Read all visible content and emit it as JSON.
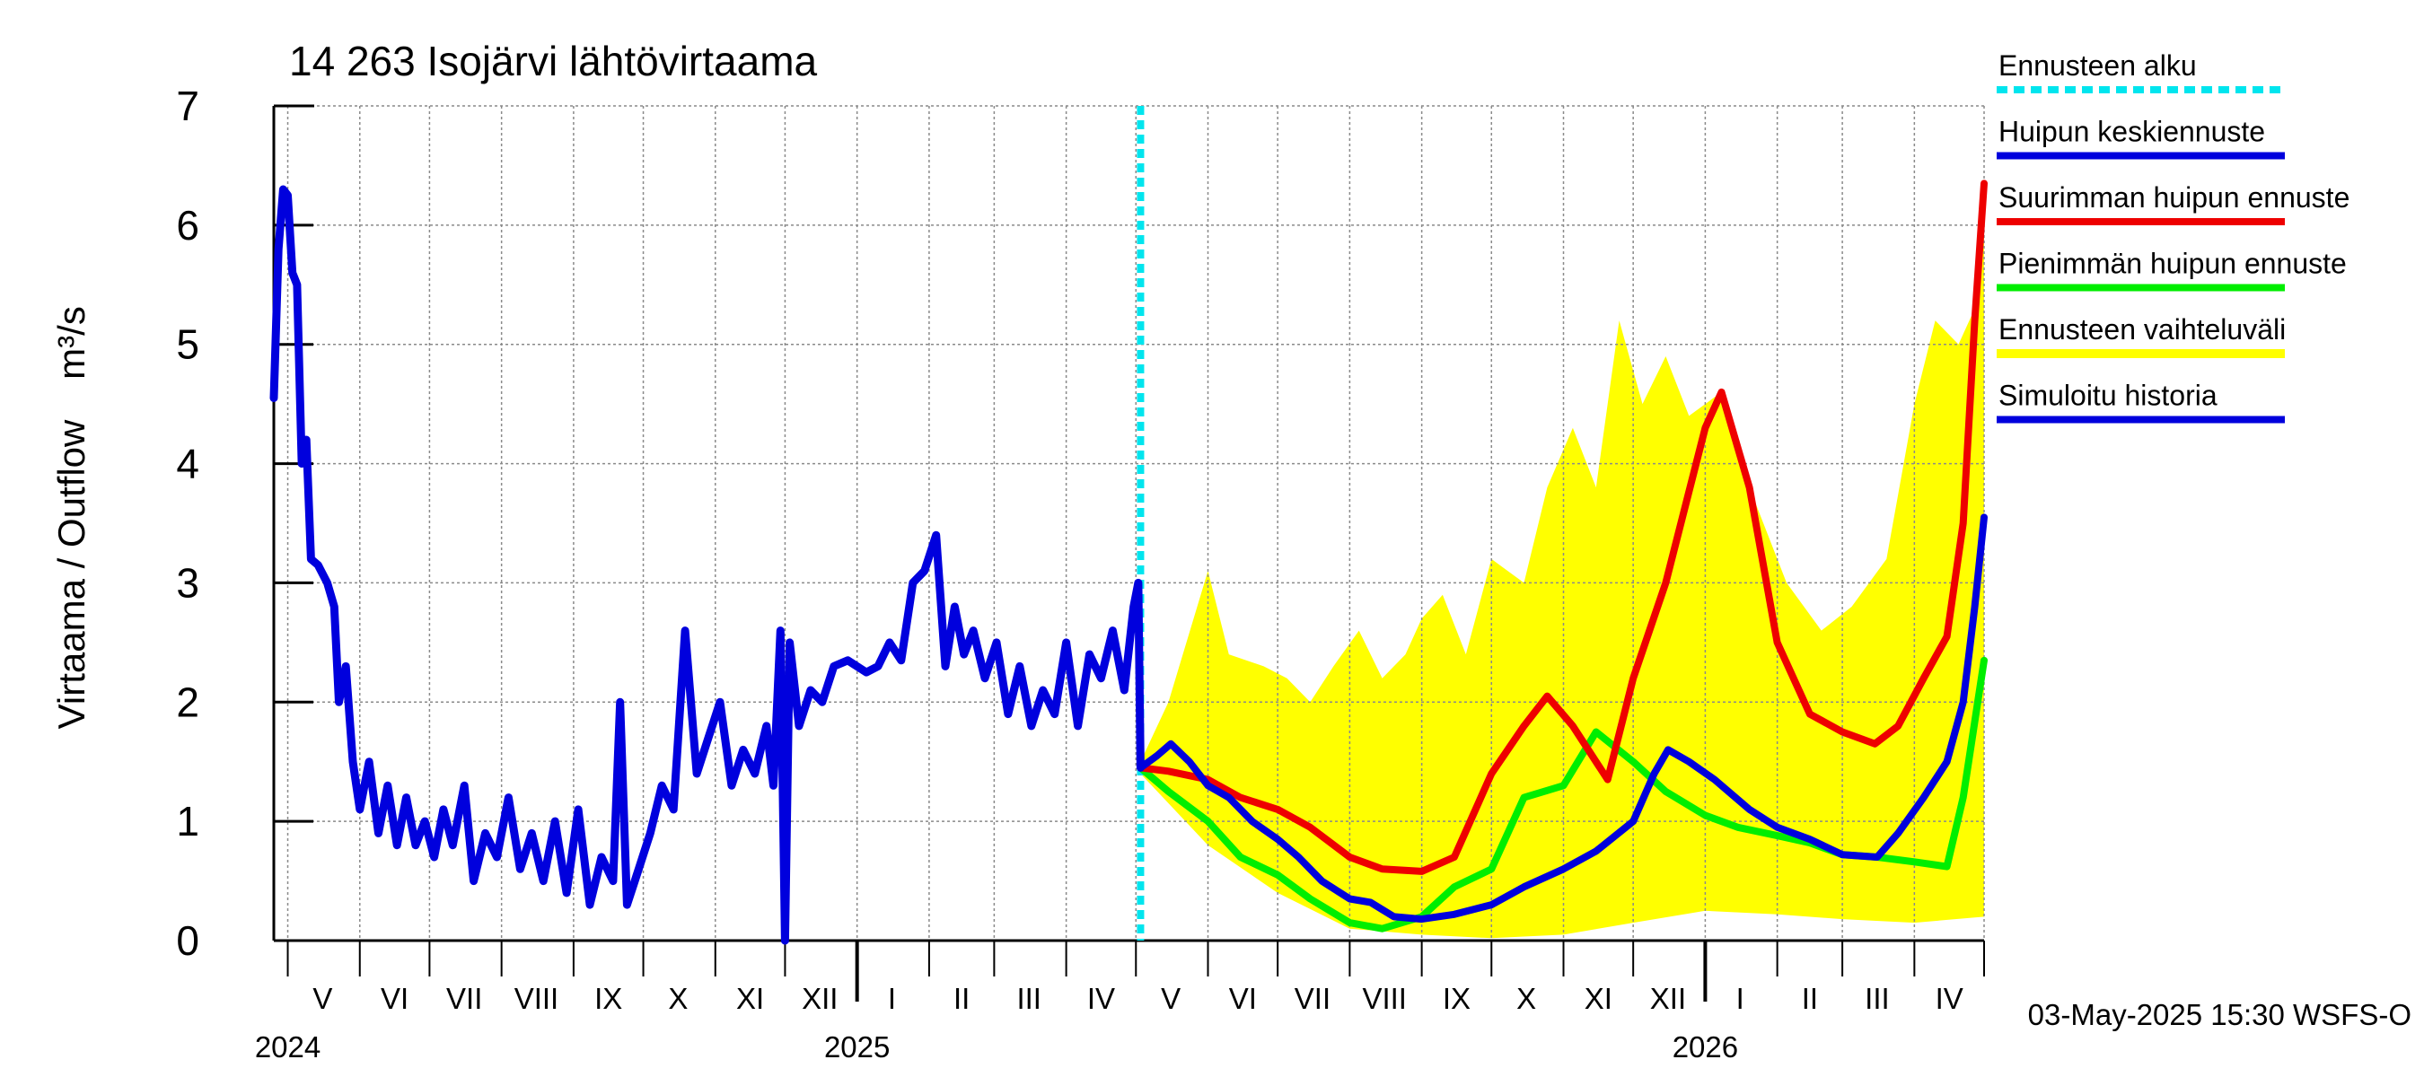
{
  "chart_data": {
    "type": "line",
    "title": "14 263 Isojärvi lähtövirtaama",
    "ylabel": "Virtaama / Outflow",
    "yunit": "m³/s",
    "ylim": [
      0,
      7
    ],
    "yticks": [
      "0",
      "1",
      "2",
      "3",
      "4",
      "5",
      "6",
      "7"
    ],
    "xlim": [
      "2024-04-25",
      "2026-05-01"
    ],
    "grid": true,
    "legend_position": "right",
    "forecast_start": "2025-05-03",
    "timestamp": "03-May-2025 15:30 WSFS-O",
    "month_labels": [
      {
        "label": "V",
        "date": "2024-05-16"
      },
      {
        "label": "VI",
        "date": "2024-06-16"
      },
      {
        "label": "VII",
        "date": "2024-07-16"
      },
      {
        "label": "VIII",
        "date": "2024-08-16"
      },
      {
        "label": "IX",
        "date": "2024-09-16"
      },
      {
        "label": "X",
        "date": "2024-10-16"
      },
      {
        "label": "XI",
        "date": "2024-11-16"
      },
      {
        "label": "XII",
        "date": "2024-12-16"
      },
      {
        "label": "I",
        "date": "2025-01-16"
      },
      {
        "label": "II",
        "date": "2025-02-15"
      },
      {
        "label": "III",
        "date": "2025-03-16"
      },
      {
        "label": "IV",
        "date": "2025-04-16"
      },
      {
        "label": "V",
        "date": "2025-05-16"
      },
      {
        "label": "VI",
        "date": "2025-06-16"
      },
      {
        "label": "VII",
        "date": "2025-07-16"
      },
      {
        "label": "VIII",
        "date": "2025-08-16"
      },
      {
        "label": "IX",
        "date": "2025-09-16"
      },
      {
        "label": "X",
        "date": "2025-10-16"
      },
      {
        "label": "XI",
        "date": "2025-11-16"
      },
      {
        "label": "XII",
        "date": "2025-12-16"
      },
      {
        "label": "I",
        "date": "2026-01-16"
      },
      {
        "label": "II",
        "date": "2026-02-15"
      },
      {
        "label": "III",
        "date": "2026-03-16"
      },
      {
        "label": "IV",
        "date": "2026-04-16"
      }
    ],
    "year_labels": [
      {
        "label": "2024",
        "date": "2024-05-01"
      },
      {
        "label": "2025",
        "date": "2025-01-01"
      },
      {
        "label": "2026",
        "date": "2026-01-01"
      }
    ],
    "legend": [
      {
        "label": "Ennusteen alku",
        "color": "#00e5ee",
        "style": "dashed"
      },
      {
        "label": "Huipun keskiennuste",
        "color": "#0000dd",
        "style": "solid"
      },
      {
        "label": "Suurimman huipun ennuste",
        "color": "#ee0000",
        "style": "solid"
      },
      {
        "label": "Pienimmän huipun ennuste",
        "color": "#00ee00",
        "style": "solid"
      },
      {
        "label": "Ennusteen vaihteluväli",
        "color": "#ffff00",
        "style": "band"
      },
      {
        "label": "Simuloitu historia",
        "color": "#0000dd",
        "style": "solid"
      }
    ],
    "series": [
      {
        "name": "Simuloitu historia",
        "color": "#0000dd",
        "points": [
          [
            "2024-04-25",
            4.55
          ],
          [
            "2024-04-27",
            5.8
          ],
          [
            "2024-04-29",
            6.3
          ],
          [
            "2024-05-01",
            6.25
          ],
          [
            "2024-05-03",
            5.6
          ],
          [
            "2024-05-05",
            5.5
          ],
          [
            "2024-05-07",
            4.0
          ],
          [
            "2024-05-09",
            4.2
          ],
          [
            "2024-05-11",
            3.2
          ],
          [
            "2024-05-14",
            3.15
          ],
          [
            "2024-05-18",
            3.0
          ],
          [
            "2024-05-21",
            2.8
          ],
          [
            "2024-05-23",
            2.0
          ],
          [
            "2024-05-26",
            2.3
          ],
          [
            "2024-05-29",
            1.5
          ],
          [
            "2024-06-01",
            1.1
          ],
          [
            "2024-06-05",
            1.5
          ],
          [
            "2024-06-09",
            0.9
          ],
          [
            "2024-06-13",
            1.3
          ],
          [
            "2024-06-17",
            0.8
          ],
          [
            "2024-06-21",
            1.2
          ],
          [
            "2024-06-25",
            0.8
          ],
          [
            "2024-06-29",
            1.0
          ],
          [
            "2024-07-03",
            0.7
          ],
          [
            "2024-07-07",
            1.1
          ],
          [
            "2024-07-11",
            0.8
          ],
          [
            "2024-07-16",
            1.3
          ],
          [
            "2024-07-20",
            0.5
          ],
          [
            "2024-07-25",
            0.9
          ],
          [
            "2024-07-30",
            0.7
          ],
          [
            "2024-08-04",
            1.2
          ],
          [
            "2024-08-09",
            0.6
          ],
          [
            "2024-08-14",
            0.9
          ],
          [
            "2024-08-19",
            0.5
          ],
          [
            "2024-08-24",
            1.0
          ],
          [
            "2024-08-29",
            0.4
          ],
          [
            "2024-09-03",
            1.1
          ],
          [
            "2024-09-08",
            0.3
          ],
          [
            "2024-09-13",
            0.7
          ],
          [
            "2024-09-18",
            0.5
          ],
          [
            "2024-09-21",
            2.0
          ],
          [
            "2024-09-24",
            0.3
          ],
          [
            "2024-09-29",
            0.6
          ],
          [
            "2024-10-04",
            0.9
          ],
          [
            "2024-10-09",
            1.3
          ],
          [
            "2024-10-14",
            1.1
          ],
          [
            "2024-10-19",
            2.6
          ],
          [
            "2024-10-24",
            1.4
          ],
          [
            "2024-10-29",
            1.7
          ],
          [
            "2024-11-03",
            2.0
          ],
          [
            "2024-11-08",
            1.3
          ],
          [
            "2024-11-13",
            1.6
          ],
          [
            "2024-11-18",
            1.4
          ],
          [
            "2024-11-23",
            1.8
          ],
          [
            "2024-11-26",
            1.3
          ],
          [
            "2024-11-29",
            2.6
          ],
          [
            "2024-12-01",
            0.0
          ],
          [
            "2024-12-03",
            2.5
          ],
          [
            "2024-12-07",
            1.8
          ],
          [
            "2024-12-12",
            2.1
          ],
          [
            "2024-12-17",
            2.0
          ],
          [
            "2024-12-22",
            2.3
          ],
          [
            "2024-12-28",
            2.35
          ],
          [
            "2025-01-05",
            2.25
          ],
          [
            "2025-01-10",
            2.3
          ],
          [
            "2025-01-15",
            2.5
          ],
          [
            "2025-01-20",
            2.35
          ],
          [
            "2025-01-25",
            3.0
          ],
          [
            "2025-01-30",
            3.1
          ],
          [
            "2025-02-04",
            3.4
          ],
          [
            "2025-02-08",
            2.3
          ],
          [
            "2025-02-12",
            2.8
          ],
          [
            "2025-02-16",
            2.4
          ],
          [
            "2025-02-20",
            2.6
          ],
          [
            "2025-02-25",
            2.2
          ],
          [
            "2025-03-02",
            2.5
          ],
          [
            "2025-03-07",
            1.9
          ],
          [
            "2025-03-12",
            2.3
          ],
          [
            "2025-03-17",
            1.8
          ],
          [
            "2025-03-22",
            2.1
          ],
          [
            "2025-03-27",
            1.9
          ],
          [
            "2025-04-01",
            2.5
          ],
          [
            "2025-04-06",
            1.8
          ],
          [
            "2025-04-11",
            2.4
          ],
          [
            "2025-04-16",
            2.2
          ],
          [
            "2025-04-21",
            2.6
          ],
          [
            "2025-04-26",
            2.1
          ],
          [
            "2025-04-30",
            2.8
          ],
          [
            "2025-05-02",
            3.0
          ],
          [
            "2025-05-03",
            1.45
          ]
        ]
      },
      {
        "name": "Huipun keskiennuste",
        "color": "#0000dd",
        "points": [
          [
            "2025-05-03",
            1.45
          ],
          [
            "2025-05-10",
            1.55
          ],
          [
            "2025-05-16",
            1.65
          ],
          [
            "2025-05-24",
            1.5
          ],
          [
            "2025-06-01",
            1.3
          ],
          [
            "2025-06-10",
            1.2
          ],
          [
            "2025-06-20",
            1.0
          ],
          [
            "2025-07-01",
            0.85
          ],
          [
            "2025-07-10",
            0.7
          ],
          [
            "2025-07-20",
            0.5
          ],
          [
            "2025-08-01",
            0.35
          ],
          [
            "2025-08-10",
            0.32
          ],
          [
            "2025-08-20",
            0.2
          ],
          [
            "2025-09-01",
            0.18
          ],
          [
            "2025-09-15",
            0.22
          ],
          [
            "2025-10-01",
            0.3
          ],
          [
            "2025-10-15",
            0.45
          ],
          [
            "2025-11-01",
            0.6
          ],
          [
            "2025-11-15",
            0.75
          ],
          [
            "2025-12-01",
            1.0
          ],
          [
            "2025-12-10",
            1.4
          ],
          [
            "2025-12-16",
            1.6
          ],
          [
            "2025-12-25",
            1.5
          ],
          [
            "2026-01-05",
            1.35
          ],
          [
            "2026-01-20",
            1.1
          ],
          [
            "2026-02-01",
            0.95
          ],
          [
            "2026-02-15",
            0.85
          ],
          [
            "2026-03-01",
            0.72
          ],
          [
            "2026-03-16",
            0.7
          ],
          [
            "2026-03-25",
            0.9
          ],
          [
            "2026-04-05",
            1.2
          ],
          [
            "2026-04-15",
            1.5
          ],
          [
            "2026-04-22",
            2.0
          ],
          [
            "2026-04-27",
            2.8
          ],
          [
            "2026-05-01",
            3.55
          ]
        ]
      },
      {
        "name": "Suurimman huipun ennuste",
        "color": "#ee0000",
        "points": [
          [
            "2025-05-03",
            1.45
          ],
          [
            "2025-05-15",
            1.42
          ],
          [
            "2025-06-01",
            1.35
          ],
          [
            "2025-06-15",
            1.2
          ],
          [
            "2025-07-01",
            1.1
          ],
          [
            "2025-07-15",
            0.95
          ],
          [
            "2025-08-01",
            0.7
          ],
          [
            "2025-08-15",
            0.6
          ],
          [
            "2025-09-01",
            0.58
          ],
          [
            "2025-09-15",
            0.7
          ],
          [
            "2025-10-01",
            1.4
          ],
          [
            "2025-10-15",
            1.8
          ],
          [
            "2025-10-25",
            2.05
          ],
          [
            "2025-11-05",
            1.8
          ],
          [
            "2025-11-20",
            1.35
          ],
          [
            "2025-12-01",
            2.2
          ],
          [
            "2025-12-15",
            3.0
          ],
          [
            "2026-01-01",
            4.3
          ],
          [
            "2026-01-08",
            4.6
          ],
          [
            "2026-01-20",
            3.8
          ],
          [
            "2026-02-01",
            2.5
          ],
          [
            "2026-02-15",
            1.9
          ],
          [
            "2026-03-01",
            1.75
          ],
          [
            "2026-03-15",
            1.65
          ],
          [
            "2026-03-25",
            1.8
          ],
          [
            "2026-04-05",
            2.2
          ],
          [
            "2026-04-15",
            2.55
          ],
          [
            "2026-04-22",
            3.5
          ],
          [
            "2026-04-27",
            5.2
          ],
          [
            "2026-05-01",
            6.35
          ]
        ]
      },
      {
        "name": "Pienimmän huipun ennuste",
        "color": "#00ee00",
        "points": [
          [
            "2025-05-03",
            1.45
          ],
          [
            "2025-05-15",
            1.25
          ],
          [
            "2025-06-01",
            1.0
          ],
          [
            "2025-06-15",
            0.7
          ],
          [
            "2025-07-01",
            0.55
          ],
          [
            "2025-07-15",
            0.35
          ],
          [
            "2025-08-01",
            0.15
          ],
          [
            "2025-08-15",
            0.1
          ],
          [
            "2025-09-01",
            0.2
          ],
          [
            "2025-09-15",
            0.45
          ],
          [
            "2025-10-01",
            0.6
          ],
          [
            "2025-10-15",
            1.2
          ],
          [
            "2025-11-01",
            1.3
          ],
          [
            "2025-11-15",
            1.75
          ],
          [
            "2025-12-01",
            1.5
          ],
          [
            "2025-12-15",
            1.25
          ],
          [
            "2026-01-01",
            1.05
          ],
          [
            "2026-01-15",
            0.95
          ],
          [
            "2026-02-01",
            0.88
          ],
          [
            "2026-02-15",
            0.82
          ],
          [
            "2026-03-01",
            0.72
          ],
          [
            "2026-03-16",
            0.7
          ],
          [
            "2026-04-01",
            0.66
          ],
          [
            "2026-04-15",
            0.62
          ],
          [
            "2026-04-22",
            1.2
          ],
          [
            "2026-05-01",
            2.35
          ]
        ]
      }
    ],
    "band": {
      "name": "Ennusteen vaihteluväli",
      "color": "#ffff00",
      "upper": [
        [
          "2025-05-03",
          1.5
        ],
        [
          "2025-05-15",
          2.0
        ],
        [
          "2025-06-01",
          3.1
        ],
        [
          "2025-06-10",
          2.4
        ],
        [
          "2025-06-25",
          2.3
        ],
        [
          "2025-07-05",
          2.2
        ],
        [
          "2025-07-15",
          2.0
        ],
        [
          "2025-07-25",
          2.3
        ],
        [
          "2025-08-05",
          2.6
        ],
        [
          "2025-08-15",
          2.2
        ],
        [
          "2025-08-25",
          2.4
        ],
        [
          "2025-09-01",
          2.7
        ],
        [
          "2025-09-10",
          2.9
        ],
        [
          "2025-09-20",
          2.4
        ],
        [
          "2025-10-01",
          3.2
        ],
        [
          "2025-10-15",
          3.0
        ],
        [
          "2025-10-25",
          3.8
        ],
        [
          "2025-11-05",
          4.3
        ],
        [
          "2025-11-15",
          3.8
        ],
        [
          "2025-11-25",
          5.2
        ],
        [
          "2025-12-05",
          4.5
        ],
        [
          "2025-12-15",
          4.9
        ],
        [
          "2025-12-25",
          4.4
        ],
        [
          "2026-01-08",
          4.6
        ],
        [
          "2026-01-20",
          3.8
        ],
        [
          "2026-02-05",
          3.0
        ],
        [
          "2026-02-20",
          2.6
        ],
        [
          "2026-03-05",
          2.8
        ],
        [
          "2026-03-20",
          3.2
        ],
        [
          "2026-04-01",
          4.5
        ],
        [
          "2026-04-10",
          5.2
        ],
        [
          "2026-04-20",
          5.0
        ],
        [
          "2026-04-27",
          5.3
        ],
        [
          "2026-05-01",
          6.3
        ]
      ],
      "lower": [
        [
          "2025-05-03",
          1.4
        ],
        [
          "2025-06-01",
          0.8
        ],
        [
          "2025-07-01",
          0.4
        ],
        [
          "2025-08-01",
          0.1
        ],
        [
          "2025-09-01",
          0.05
        ],
        [
          "2025-10-01",
          0.02
        ],
        [
          "2025-11-01",
          0.05
        ],
        [
          "2025-12-01",
          0.15
        ],
        [
          "2026-01-01",
          0.25
        ],
        [
          "2026-02-01",
          0.22
        ],
        [
          "2026-03-01",
          0.18
        ],
        [
          "2026-04-01",
          0.15
        ],
        [
          "2026-05-01",
          0.2
        ]
      ]
    }
  }
}
